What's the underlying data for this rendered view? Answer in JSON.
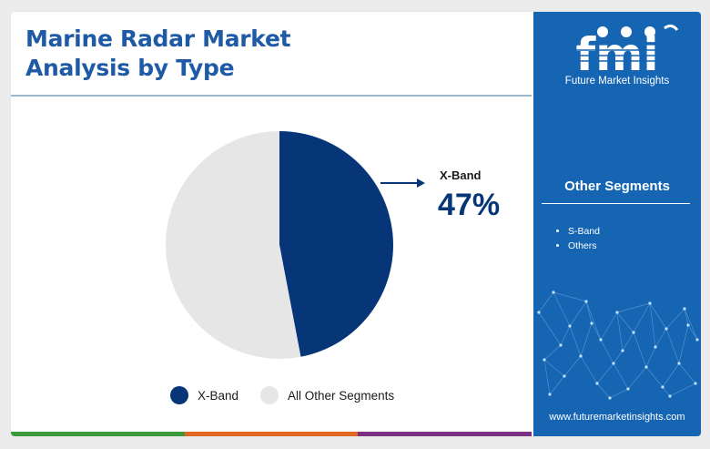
{
  "title_line1": "Marine Radar Market",
  "title_line2": "Analysis by Type",
  "chart_data": {
    "type": "pie",
    "slices": [
      {
        "label": "X-Band",
        "value": 47,
        "color": "#073678"
      },
      {
        "label": "All Other Segments",
        "value": 53,
        "color": "#e6e6e6"
      }
    ],
    "legend_position": "bottom"
  },
  "callout": {
    "label": "X-Band",
    "value": "47%"
  },
  "legend": [
    {
      "label": "X-Band",
      "color": "#073678"
    },
    {
      "label": "All Other Segments",
      "color": "#e6e6e6"
    }
  ],
  "sidebar": {
    "logo_text": "fmi",
    "logo_subtitle": "Future Market Insights",
    "other_segments_title": "Other Segments",
    "other_segments": [
      "S-Band",
      "Others"
    ],
    "website": "www.futuremarketinsights.com"
  },
  "colors": {
    "accent": "#1e5aa5",
    "sidebar_bg": "#1565b3",
    "bottom_bar": [
      "#3a9a3a",
      "#e2681f",
      "#7a2f82"
    ]
  }
}
